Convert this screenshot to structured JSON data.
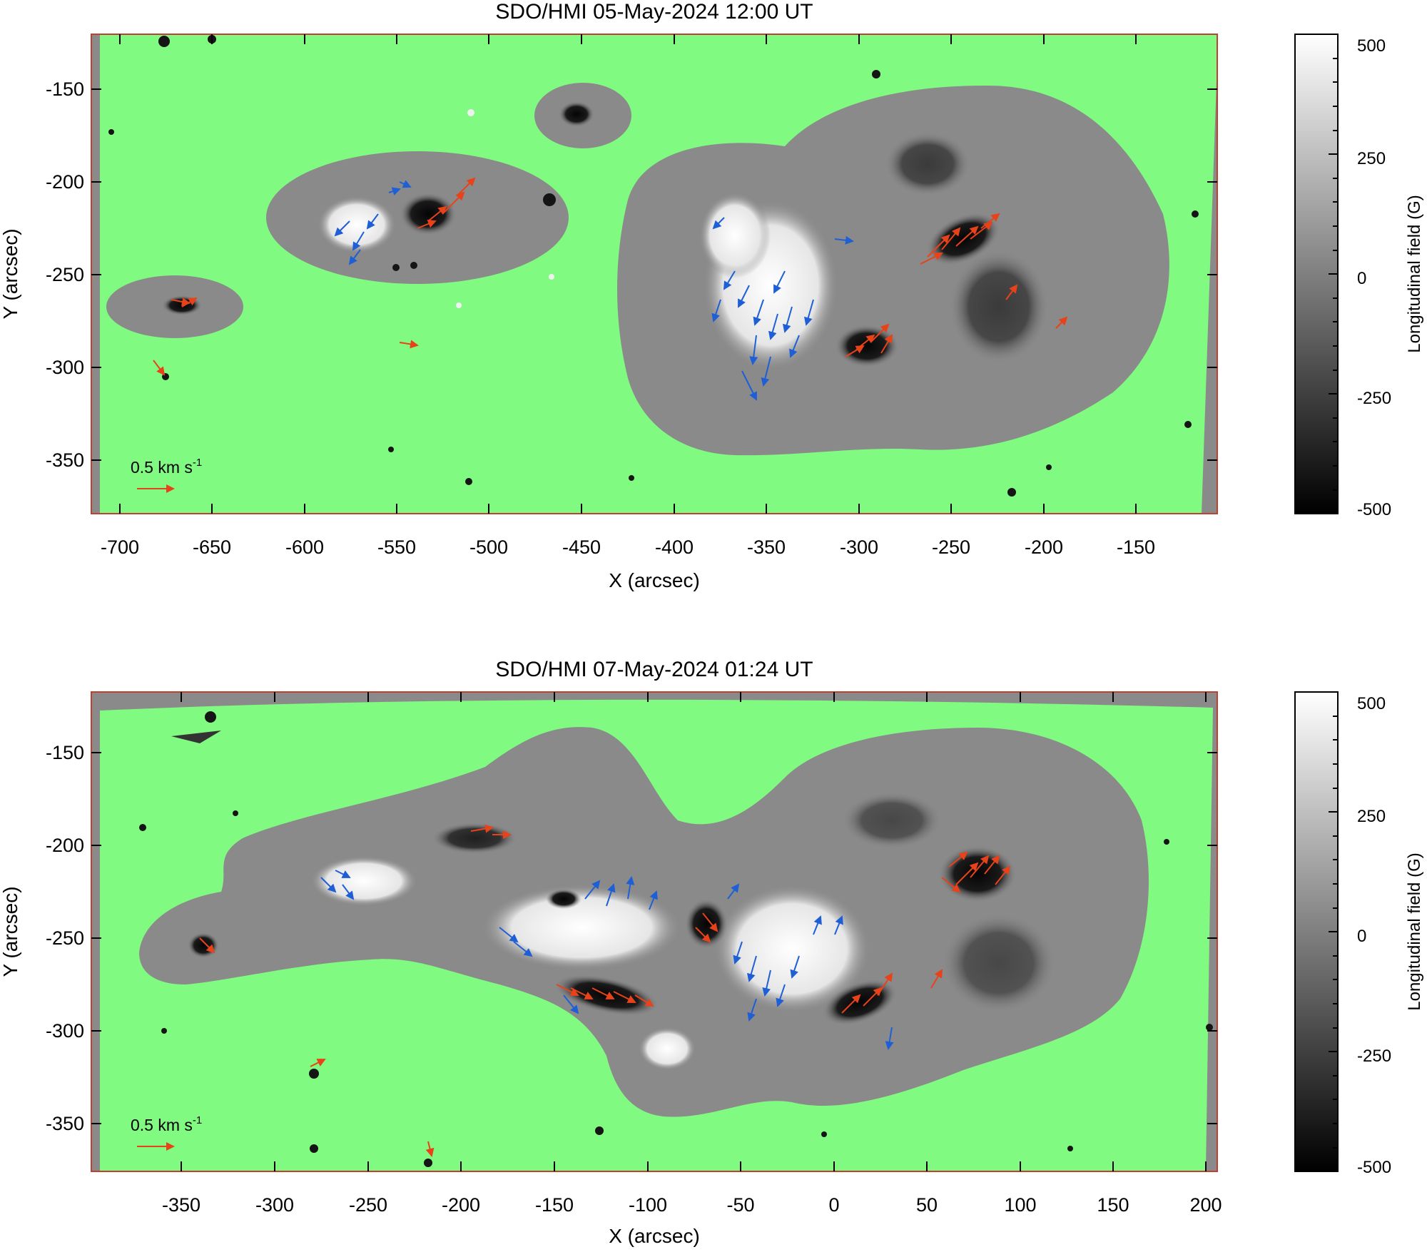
{
  "panels": [
    {
      "title": "SDO/HMI 05-May-2024 12:00 UT",
      "xlabel": "X (arcsec)",
      "ylabel": "Y (arcsec)",
      "xticks": [
        "-700",
        "-650",
        "-600",
        "-550",
        "-500",
        "-450",
        "-400",
        "-350",
        "-300",
        "-250",
        "-200",
        "-150"
      ],
      "yticks": [
        "-150",
        "-200",
        "-250",
        "-300",
        "-350"
      ],
      "velocity_label": "0.5 km s",
      "velocity_sup": "-1",
      "colorbar_label": "Longitudinal field (G)",
      "colorbar_ticks": [
        "500",
        "250",
        "0",
        "-250",
        "-500"
      ]
    },
    {
      "title": "SDO/HMI 07-May-2024 01:24 UT",
      "xlabel": "X (arcsec)",
      "ylabel": "Y (arcsec)",
      "xticks": [
        "-350",
        "-300",
        "-250",
        "-200",
        "-150",
        "-100",
        "-50",
        "0",
        "50",
        "100",
        "150",
        "200"
      ],
      "yticks": [
        "-150",
        "-200",
        "-250",
        "-300",
        "-350"
      ],
      "velocity_label": "0.5 km s",
      "velocity_sup": "-1",
      "colorbar_label": "Longitudinal field (G)",
      "colorbar_ticks": [
        "500",
        "250",
        "0",
        "-250",
        "-500"
      ]
    }
  ],
  "colors": {
    "mask_green": "#80fa80",
    "region_gray": "#8a8a8a",
    "positive_white": "#f4f4f4",
    "negative_black": "#111111",
    "arrow_red": "#e8421a",
    "arrow_blue": "#1f5fd6",
    "frame": "#c04030"
  }
}
